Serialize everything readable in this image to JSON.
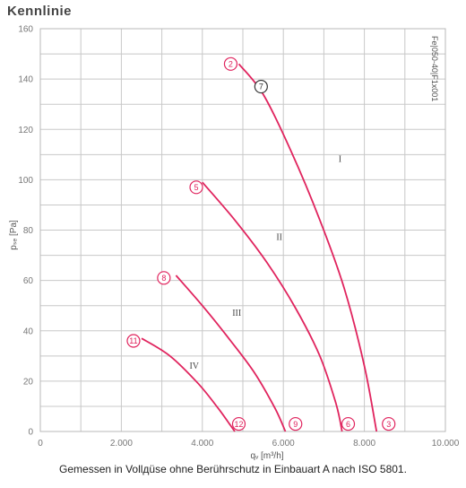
{
  "page": {
    "title": "Kennlinie",
    "caption": "Gemessen in Vollдüse ohne Berührschutz in Einbauart A nach ISO 5801.",
    "side_code": "Fe|050-40|F1x001",
    "accent_color": "#e0245e",
    "grid_color": "#c8c8c8"
  },
  "chart_data": {
    "type": "line",
    "title": "Kennlinie",
    "xlabel": "qᵥ [m³/h]",
    "ylabel": "pₛₑ [Pa]",
    "xlim": [
      0,
      10000
    ],
    "ylim": [
      0,
      160
    ],
    "x_ticks": [
      0,
      2000,
      4000,
      6000,
      8000,
      10000
    ],
    "x_tick_labels": [
      "0",
      "2.000",
      "4.000",
      "6.000",
      "8.000",
      "10.000"
    ],
    "y_ticks": [
      0,
      20,
      40,
      60,
      80,
      100,
      120,
      140,
      160
    ],
    "y_tick_labels": [
      "0",
      "20",
      "40",
      "60",
      "80",
      "100",
      "120",
      "140",
      "160"
    ],
    "grid": true,
    "series": [
      {
        "name": "I",
        "x": [
          4900,
          5500,
          6200,
          6900,
          7500,
          8000,
          8300
        ],
        "y": [
          146,
          134,
          111,
          84,
          57,
          26,
          0
        ]
      },
      {
        "name": "II",
        "x": [
          4000,
          4800,
          5600,
          6300,
          6900,
          7300,
          7450
        ],
        "y": [
          99,
          84,
          67,
          49,
          30,
          11,
          0
        ]
      },
      {
        "name": "III",
        "x": [
          3350,
          4000,
          4700,
          5300,
          5800,
          6050
        ],
        "y": [
          62,
          50,
          36,
          23,
          9,
          0
        ]
      },
      {
        "name": "IV",
        "x": [
          2500,
          3200,
          3900,
          4400,
          4800
        ],
        "y": [
          37,
          30,
          19,
          9,
          0
        ]
      }
    ],
    "point_markers": [
      {
        "label": "2",
        "x": 4700,
        "y": 146
      },
      {
        "label": "7",
        "x": 5450,
        "y": 137
      },
      {
        "label": "3",
        "x": 8600,
        "y": 3
      },
      {
        "label": "5",
        "x": 3850,
        "y": 97
      },
      {
        "label": "6",
        "x": 7600,
        "y": 3
      },
      {
        "label": "8",
        "x": 3050,
        "y": 61
      },
      {
        "label": "9",
        "x": 6300,
        "y": 3
      },
      {
        "label": "11",
        "x": 2300,
        "y": 36
      },
      {
        "label": "12",
        "x": 4900,
        "y": 3
      }
    ]
  }
}
